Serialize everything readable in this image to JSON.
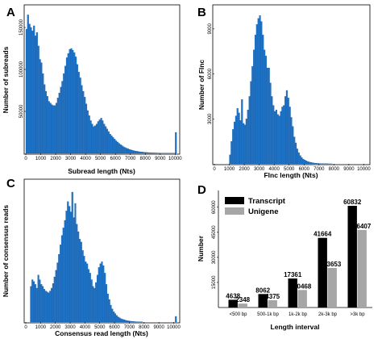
{
  "colors": {
    "histogram": "#1f74c8",
    "histogram_edge": "#0d4f94",
    "transcript": "#000000",
    "unigene": "#a6a6a6"
  },
  "chart_data": [
    {
      "panel": "A",
      "type": "bar",
      "xlabel": "Subread length (Nts)",
      "ylabel": "Number of subreads",
      "xlim": [
        0,
        10200
      ],
      "ylim": [
        0,
        175000
      ],
      "xticks": [
        0,
        1000,
        2000,
        3000,
        4000,
        5000,
        6000,
        7000,
        8000,
        9000,
        10000
      ],
      "yticks": [
        50000,
        100000,
        150000
      ],
      "bin_width": 100,
      "x": [
        0,
        100,
        200,
        300,
        400,
        500,
        600,
        700,
        800,
        900,
        1000,
        1100,
        1200,
        1300,
        1400,
        1500,
        1600,
        1700,
        1800,
        1900,
        2000,
        2100,
        2200,
        2300,
        2400,
        2500,
        2600,
        2700,
        2800,
        2900,
        3000,
        3100,
        3200,
        3300,
        3400,
        3500,
        3600,
        3700,
        3800,
        3900,
        4000,
        4100,
        4200,
        4300,
        4400,
        4500,
        4600,
        4700,
        4800,
        4900,
        5000,
        5100,
        5200,
        5300,
        5400,
        5500,
        5600,
        5700,
        5800,
        5900,
        6000,
        6100,
        6200,
        6300,
        6400,
        6500,
        6600,
        6700,
        6800,
        6900,
        7000,
        7100,
        7200,
        7300,
        7400,
        7500,
        7600,
        7700,
        7800,
        7900,
        8000,
        8100,
        8200,
        8300,
        8400,
        8500,
        8600,
        8700,
        8800,
        8900,
        9000,
        9100,
        9200,
        9300,
        9400,
        9500,
        9600,
        9700,
        9800,
        9900,
        10000,
        10100
      ],
      "values": [
        148000,
        165000,
        154000,
        150000,
        146000,
        152000,
        140000,
        144000,
        128000,
        112000,
        108000,
        95000,
        82000,
        74000,
        68000,
        62000,
        60000,
        58000,
        57000,
        57000,
        60000,
        66000,
        72000,
        79000,
        86000,
        95000,
        104000,
        114000,
        119000,
        124000,
        125000,
        123000,
        120000,
        115000,
        106000,
        97000,
        90000,
        81000,
        74000,
        67000,
        59000,
        51000,
        45000,
        39000,
        35000,
        32000,
        33000,
        35000,
        38000,
        40000,
        42000,
        39000,
        35000,
        32000,
        29000,
        26000,
        23000,
        21000,
        19000,
        17000,
        15000,
        13500,
        12000,
        10500,
        9200,
        8000,
        7000,
        6200,
        5500,
        4800,
        4200,
        3700,
        3200,
        2800,
        2500,
        2200,
        1900,
        1700,
        1500,
        1300,
        1200,
        1000,
        900,
        800,
        700,
        600,
        550,
        500,
        450,
        400,
        350,
        300,
        280,
        250,
        220,
        200,
        180,
        160,
        150,
        130,
        25000,
        0
      ]
    },
    {
      "panel": "B",
      "type": "bar",
      "xlabel": "Flnc length (Nts)",
      "ylabel": "Number of Flnc",
      "xlim": [
        0,
        10300
      ],
      "ylim": [
        0,
        10500
      ],
      "xticks": [
        0,
        1000,
        2000,
        3000,
        4000,
        5000,
        6000,
        7000,
        8000,
        9000,
        10000
      ],
      "yticks": [
        3000,
        6000,
        9000
      ],
      "bin_width": 100,
      "x": [
        1000,
        1100,
        1200,
        1300,
        1400,
        1500,
        1600,
        1700,
        1800,
        1900,
        2000,
        2100,
        2200,
        2300,
        2400,
        2500,
        2600,
        2700,
        2800,
        2900,
        3000,
        3100,
        3200,
        3300,
        3400,
        3500,
        3600,
        3700,
        3800,
        3900,
        4000,
        4100,
        4200,
        4300,
        4400,
        4500,
        4600,
        4700,
        4800,
        4900,
        5000,
        5100,
        5200,
        5300,
        5400,
        5500,
        5600,
        5700,
        5800,
        5900,
        6000,
        6100,
        6200,
        6300,
        6400,
        6500,
        6600,
        6700,
        6800,
        6900,
        7000,
        7100,
        7200,
        7300,
        7400,
        7500,
        7600,
        7700,
        7800
      ],
      "values": [
        600,
        1500,
        2300,
        2800,
        3200,
        3700,
        3400,
        2900,
        4300,
        2700,
        2600,
        3000,
        3600,
        4500,
        5500,
        6500,
        7600,
        8600,
        9300,
        9700,
        9900,
        9500,
        8600,
        7600,
        7200,
        6400,
        6400,
        5400,
        4500,
        3900,
        3500,
        3600,
        3300,
        3200,
        3500,
        3800,
        3900,
        4500,
        4900,
        4400,
        3800,
        3100,
        2500,
        1800,
        1400,
        1000,
        750,
        550,
        420,
        320,
        260,
        200,
        160,
        130,
        100,
        80,
        60,
        50,
        40,
        30,
        25,
        20,
        15,
        12,
        10,
        8,
        6,
        5,
        4
      ]
    },
    {
      "panel": "C",
      "type": "bar",
      "xlabel": "Consensus read length (Nts)",
      "ylabel": "Number of consensus reads",
      "xlim": [
        0,
        10300
      ],
      "ylim": [
        0,
        150
      ],
      "xticks": [
        0,
        1000,
        2000,
        3000,
        4000,
        5000,
        6000,
        7000,
        8000,
        9000,
        10000
      ],
      "yticks": [],
      "bin_width": 100,
      "x": [
        300,
        400,
        500,
        600,
        700,
        800,
        900,
        1000,
        1100,
        1200,
        1300,
        1400,
        1500,
        1600,
        1700,
        1800,
        1900,
        2000,
        2100,
        2200,
        2300,
        2400,
        2500,
        2600,
        2700,
        2800,
        2900,
        3000,
        3100,
        3200,
        3300,
        3400,
        3500,
        3600,
        3700,
        3800,
        3900,
        4000,
        4100,
        4200,
        4300,
        4400,
        4500,
        4600,
        4700,
        4800,
        4900,
        5000,
        5100,
        5200,
        5300,
        5400,
        5500,
        5600,
        5700,
        5800,
        5900,
        6000,
        6100,
        6200,
        6300,
        6400,
        6500,
        6600,
        6700,
        6800,
        6900,
        7000,
        7100,
        7200,
        7300,
        7400,
        7500,
        7600,
        7700,
        7800,
        10100
      ],
      "values": [
        38,
        45,
        43,
        40,
        36,
        50,
        45,
        40,
        38,
        35,
        33,
        32,
        31,
        33,
        36,
        41,
        48,
        55,
        63,
        72,
        82,
        92,
        100,
        108,
        118,
        128,
        123,
        117,
        138,
        111,
        126,
        104,
        96,
        88,
        85,
        76,
        70,
        64,
        62,
        56,
        52,
        45,
        38,
        36,
        42,
        50,
        58,
        62,
        64,
        60,
        52,
        40,
        30,
        24,
        18,
        14,
        11,
        9,
        7,
        5.5,
        4.5,
        3.5,
        3,
        2.5,
        2,
        1.6,
        1.3,
        1,
        0.8,
        0.6,
        0.5,
        0.4,
        0.3,
        0.3,
        0.2,
        0.2,
        6
      ]
    },
    {
      "panel": "D",
      "type": "bar",
      "xlabel": "Length interval",
      "ylabel": "Number",
      "categories": [
        "<500 bp",
        "500-1k bp",
        "1k-2k bp",
        "2k-3k bp",
        ">3k bp"
      ],
      "ylim": [
        0,
        70000
      ],
      "yticks": [
        15000,
        30000,
        45000,
        60000
      ],
      "legend_position": "top-left",
      "series": [
        {
          "name": "Transcript",
          "values": [
            4638,
            8062,
            17361,
            41664,
            60832
          ]
        },
        {
          "name": "Unigene",
          "values": [
            2348,
            4375,
            10468,
            23653,
            46407
          ]
        }
      ]
    }
  ]
}
